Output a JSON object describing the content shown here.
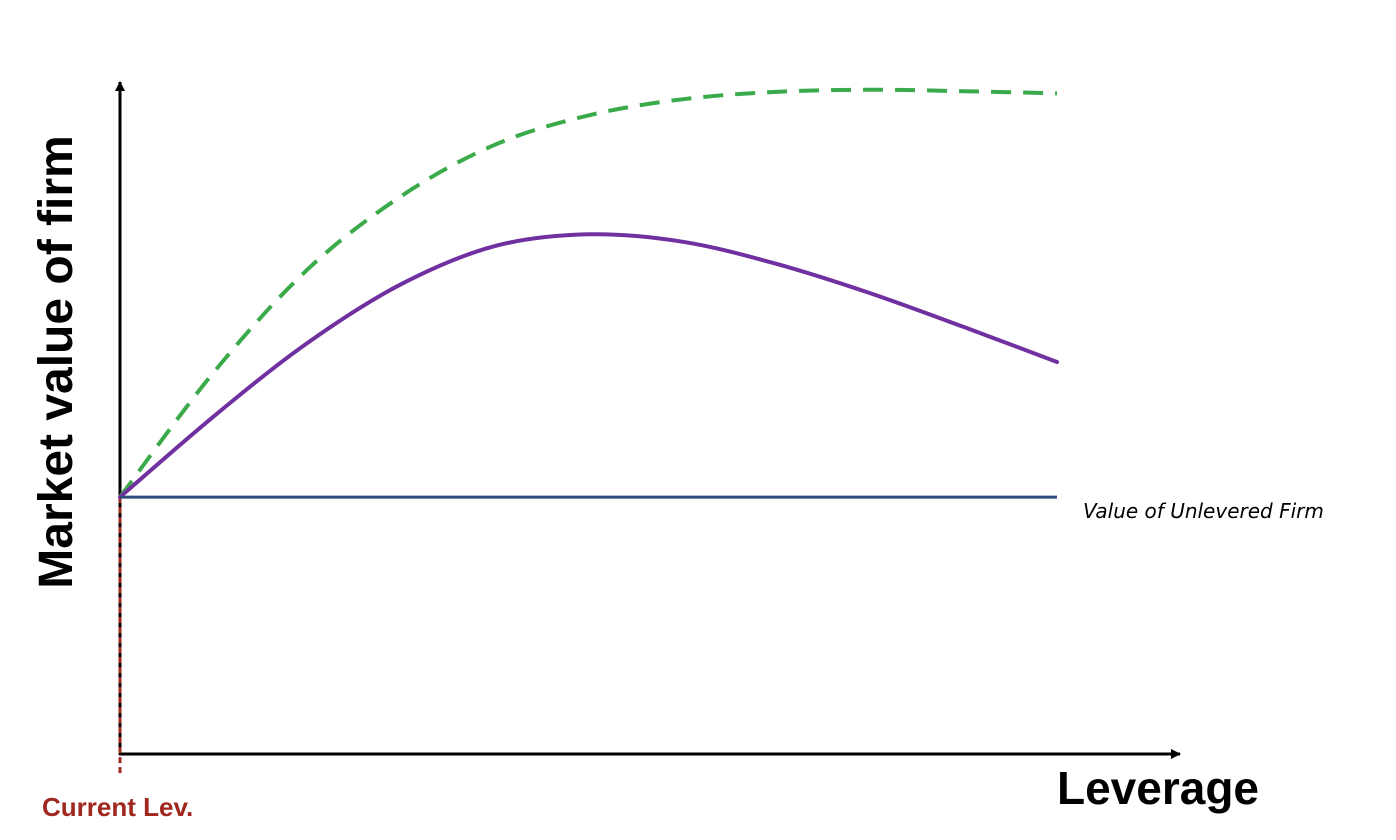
{
  "chart_data": {
    "type": "line",
    "title": "",
    "xlabel": "Leverage",
    "ylabel": "Market value of firm",
    "xlim": [
      0,
      10
    ],
    "ylim": [
      0,
      10
    ],
    "grid": false,
    "legend": "none",
    "series": [
      {
        "name": "",
        "style": "dashed",
        "color": "#3aaa4a",
        "x": [
          0,
          1,
          2,
          3,
          4,
          5,
          6,
          7,
          8,
          9,
          10
        ],
        "y": [
          3.5,
          5.2,
          6.6,
          7.6,
          8.3,
          8.7,
          8.92,
          9.02,
          9.05,
          9.03,
          9.0
        ]
      },
      {
        "name": "",
        "style": "solid",
        "color": "#7030a0",
        "x": [
          0,
          1,
          2,
          3,
          4,
          5,
          6,
          7,
          8,
          9,
          10
        ],
        "y": [
          3.5,
          4.6,
          5.6,
          6.4,
          6.92,
          7.08,
          6.98,
          6.68,
          6.28,
          5.82,
          5.34
        ]
      },
      {
        "name": "",
        "style": "solid",
        "color": "#2f4b7c",
        "x": [
          0,
          10
        ],
        "y": [
          3.5,
          3.5
        ]
      }
    ],
    "annotations": [
      {
        "text": "Value of Unlevered Firm",
        "x": 10,
        "y": 3.5
      },
      {
        "text": "Current Lev.",
        "x": 0,
        "y": 0,
        "color": "#a0281e"
      }
    ],
    "current_leverage_x": 0
  }
}
